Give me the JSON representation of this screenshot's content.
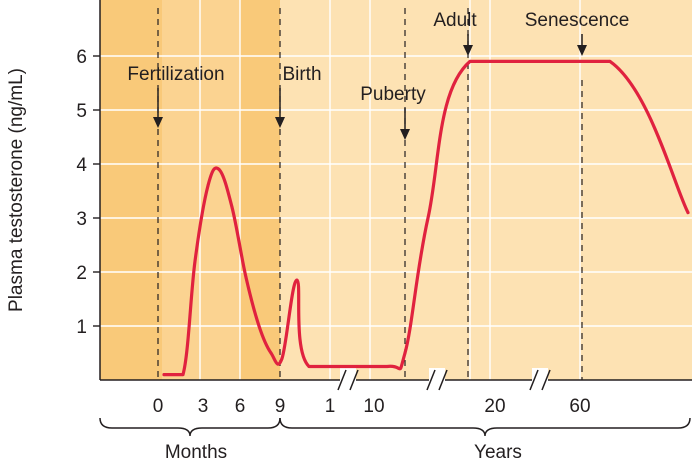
{
  "chart_data": {
    "type": "line",
    "title": "",
    "ylabel": "Plasma testosterone (ng/mL)",
    "xlabel": "",
    "ylim": [
      0,
      7
    ],
    "yticks": [
      1,
      2,
      3,
      4,
      5,
      6
    ],
    "grid": true,
    "x_tick_labels": [
      {
        "label": "0",
        "period": "months"
      },
      {
        "label": "3",
        "period": "months"
      },
      {
        "label": "6",
        "period": "months"
      },
      {
        "label": "9",
        "period": "months"
      },
      {
        "label": "1",
        "period": "years"
      },
      {
        "label": "10",
        "period": "years"
      },
      {
        "label": "20",
        "period": "years"
      },
      {
        "label": "60",
        "period": "years"
      }
    ],
    "period_labels": {
      "prenatal": "Months",
      "postnatal": "Years"
    },
    "events": [
      {
        "label": "Fertilization",
        "at": "0 months"
      },
      {
        "label": "Birth",
        "at": "9 months"
      },
      {
        "label": "Puberty",
        "at": "between 10 and 20 years"
      },
      {
        "label": "Adult",
        "at": "approx. 18 years"
      },
      {
        "label": "Senescence",
        "at": "60 years"
      }
    ],
    "series": [
      {
        "color": "#e0223f",
        "points": [
          {
            "x": "0 months",
            "y": 0.1
          },
          {
            "x": "1 month",
            "y": 0.1
          },
          {
            "x": "2 months",
            "y": 2.2
          },
          {
            "x": "3 months",
            "y": 3.6
          },
          {
            "x": "4 months",
            "y": 3.9
          },
          {
            "x": "5 months",
            "y": 3.2
          },
          {
            "x": "6 months",
            "y": 1.9
          },
          {
            "x": "7 months",
            "y": 1.0
          },
          {
            "x": "8 months",
            "y": 0.5
          },
          {
            "x": "9 months",
            "y": 0.4
          },
          {
            "x": "early infancy",
            "y": 1.85
          },
          {
            "x": "1 year",
            "y": 0.25
          },
          {
            "x": "10 years",
            "y": 0.25
          },
          {
            "x": "puberty onset",
            "y": 0.5
          },
          {
            "x": "mid puberty",
            "y": 3.0
          },
          {
            "x": "20 years",
            "y": 5.9
          },
          {
            "x": "60 years",
            "y": 5.9
          },
          {
            "x": "old age",
            "y": 3.1
          }
        ]
      }
    ]
  }
}
